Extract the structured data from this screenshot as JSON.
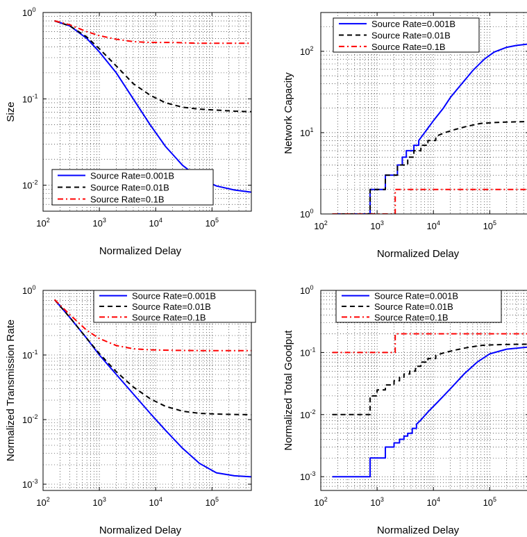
{
  "chart_data": [
    {
      "type": "line",
      "xlabel": "Normalized Delay",
      "ylabel": "Size",
      "xscale": "log",
      "yscale": "log",
      "xlim": [
        100,
        500000
      ],
      "ylim": [
        0.005,
        1
      ],
      "grid": true,
      "legend_position": "bottom-center",
      "xticks": [
        {
          "base": "10",
          "exp": "2",
          "value": 100
        },
        {
          "base": "10",
          "exp": "3",
          "value": 1000
        },
        {
          "base": "10",
          "exp": "4",
          "value": 10000
        },
        {
          "base": "10",
          "exp": "5",
          "value": 100000
        }
      ],
      "yticks": [
        {
          "base": "10",
          "exp": "-2",
          "value": 0.01
        },
        {
          "base": "10",
          "exp": "-1",
          "value": 0.1
        },
        {
          "base": "10",
          "exp": "0",
          "value": 1
        }
      ],
      "series": [
        {
          "name": "Source Rate=0.001B",
          "color": "#0000ff",
          "style": "solid",
          "x": [
            160,
            300,
            600,
            1000,
            2000,
            4000,
            8000,
            15000,
            30000,
            60000,
            120000,
            250000,
            500000
          ],
          "y": [
            0.8,
            0.7,
            0.5,
            0.35,
            0.2,
            0.1,
            0.05,
            0.028,
            0.017,
            0.012,
            0.0098,
            0.0088,
            0.0083
          ]
        },
        {
          "name": "Source Rate=0.01B",
          "color": "#000000",
          "style": "dashed",
          "x": [
            160,
            300,
            600,
            1000,
            2000,
            4000,
            8000,
            15000,
            30000,
            60000,
            120000,
            250000,
            500000
          ],
          "y": [
            0.8,
            0.7,
            0.52,
            0.38,
            0.24,
            0.15,
            0.11,
            0.09,
            0.08,
            0.076,
            0.074,
            0.072,
            0.071
          ]
        },
        {
          "name": "Source Rate=0.1B",
          "color": "#ff0000",
          "style": "dashdot",
          "x": [
            160,
            300,
            600,
            1000,
            2000,
            4000,
            8000,
            20000,
            60000,
            200000,
            500000
          ],
          "y": [
            0.8,
            0.72,
            0.6,
            0.54,
            0.49,
            0.46,
            0.45,
            0.45,
            0.44,
            0.44,
            0.44
          ]
        }
      ]
    },
    {
      "type": "line",
      "xlabel": "Normalized Delay",
      "ylabel": "Network Capacity",
      "xscale": "log",
      "yscale": "log",
      "xlim": [
        100,
        500000
      ],
      "ylim": [
        1,
        300
      ],
      "grid": true,
      "legend_position": "top-left",
      "xticks": [
        {
          "base": "10",
          "exp": "2",
          "value": 100
        },
        {
          "base": "10",
          "exp": "3",
          "value": 1000
        },
        {
          "base": "10",
          "exp": "4",
          "value": 10000
        },
        {
          "base": "10",
          "exp": "5",
          "value": 100000
        }
      ],
      "yticks": [
        {
          "base": "10",
          "exp": "0",
          "value": 1
        },
        {
          "base": "10",
          "exp": "1",
          "value": 10
        },
        {
          "base": "10",
          "exp": "2",
          "value": 100
        }
      ],
      "series": [
        {
          "name": "Source Rate=0.001B",
          "color": "#0000ff",
          "style": "solid",
          "x": [
            160,
            750,
            750,
            1400,
            1400,
            1800,
            1800,
            2300,
            2300,
            2800,
            2800,
            3300,
            3300,
            3800,
            3800,
            4500,
            4500,
            5500,
            5500,
            7000,
            10000,
            15000,
            20000,
            30000,
            50000,
            80000,
            120000,
            200000,
            300000,
            500000
          ],
          "y": [
            1,
            1,
            2,
            2,
            3,
            3,
            3,
            3,
            4,
            4,
            5,
            5,
            6,
            6,
            6,
            6,
            7,
            7,
            8,
            10,
            14,
            20,
            27,
            38,
            58,
            80,
            98,
            112,
            118,
            123
          ]
        },
        {
          "name": "Source Rate=0.01B",
          "color": "#000000",
          "style": "dashed",
          "x": [
            160,
            750,
            750,
            1400,
            1400,
            2300,
            2300,
            2800,
            2800,
            3500,
            3500,
            4500,
            4500,
            6000,
            6000,
            8000,
            8000,
            11000,
            11000,
            16000,
            25000,
            40000,
            70000,
            120000,
            200000,
            350000,
            500000
          ],
          "y": [
            1,
            1,
            2,
            2,
            3,
            3,
            4,
            4,
            4,
            4,
            5,
            5,
            6,
            6,
            7,
            7,
            8,
            8,
            9,
            10,
            11,
            12,
            13,
            13.3,
            13.5,
            13.6,
            13.7
          ]
        },
        {
          "name": "Source Rate=0.1B",
          "color": "#ff0000",
          "style": "dashdot",
          "x": [
            160,
            2100,
            2100,
            500000
          ],
          "y": [
            1,
            1,
            2,
            2
          ]
        }
      ]
    },
    {
      "type": "line",
      "xlabel": "Normalized Delay",
      "ylabel": "Normalized Transmission Rate",
      "xscale": "log",
      "yscale": "log",
      "xlim": [
        100,
        500000
      ],
      "ylim": [
        0.0008,
        1
      ],
      "grid": true,
      "legend_position": "top-right",
      "xticks": [
        {
          "base": "10",
          "exp": "2",
          "value": 100
        },
        {
          "base": "10",
          "exp": "3",
          "value": 1000
        },
        {
          "base": "10",
          "exp": "4",
          "value": 10000
        },
        {
          "base": "10",
          "exp": "5",
          "value": 100000
        }
      ],
      "yticks": [
        {
          "base": "10",
          "exp": "-3",
          "value": 0.001
        },
        {
          "base": "10",
          "exp": "-2",
          "value": 0.01
        },
        {
          "base": "10",
          "exp": "-1",
          "value": 0.1
        },
        {
          "base": "10",
          "exp": "0",
          "value": 1
        }
      ],
      "series": [
        {
          "name": "Source Rate=0.001B",
          "color": "#0000ff",
          "style": "solid",
          "x": [
            160,
            300,
            600,
            1000,
            2000,
            4000,
            8000,
            15000,
            30000,
            60000,
            120000,
            250000,
            500000
          ],
          "y": [
            0.72,
            0.38,
            0.18,
            0.1,
            0.05,
            0.025,
            0.0125,
            0.0068,
            0.0036,
            0.0021,
            0.0015,
            0.00135,
            0.0013
          ]
        },
        {
          "name": "Source Rate=0.01B",
          "color": "#000000",
          "style": "dashed",
          "x": [
            160,
            300,
            600,
            1000,
            2000,
            4000,
            8000,
            15000,
            30000,
            60000,
            120000,
            250000,
            500000
          ],
          "y": [
            0.72,
            0.38,
            0.18,
            0.105,
            0.055,
            0.032,
            0.021,
            0.016,
            0.0135,
            0.0125,
            0.0122,
            0.012,
            0.0119
          ]
        },
        {
          "name": "Source Rate=0.1B",
          "color": "#ff0000",
          "style": "dashdot",
          "x": [
            160,
            300,
            600,
            1000,
            2000,
            4000,
            8000,
            20000,
            60000,
            200000,
            500000
          ],
          "y": [
            0.72,
            0.42,
            0.24,
            0.18,
            0.14,
            0.125,
            0.12,
            0.118,
            0.117,
            0.117,
            0.117
          ]
        }
      ]
    },
    {
      "type": "line",
      "xlabel": "Normalized Delay",
      "ylabel": "Normalized Total Goodput",
      "xscale": "log",
      "yscale": "log",
      "xlim": [
        100,
        500000
      ],
      "ylim": [
        0.0006,
        1
      ],
      "grid": true,
      "legend_position": "top-right",
      "xticks": [
        {
          "base": "10",
          "exp": "2",
          "value": 100
        },
        {
          "base": "10",
          "exp": "3",
          "value": 1000
        },
        {
          "base": "10",
          "exp": "4",
          "value": 10000
        },
        {
          "base": "10",
          "exp": "5",
          "value": 100000
        }
      ],
      "yticks": [
        {
          "base": "10",
          "exp": "-3",
          "value": 0.001
        },
        {
          "base": "10",
          "exp": "-2",
          "value": 0.01
        },
        {
          "base": "10",
          "exp": "-1",
          "value": 0.1
        },
        {
          "base": "10",
          "exp": "0",
          "value": 1
        }
      ],
      "series": [
        {
          "name": "Source Rate=0.001B",
          "color": "#0000ff",
          "style": "solid",
          "x": [
            160,
            750,
            750,
            1400,
            1400,
            2000,
            2000,
            2500,
            2500,
            3000,
            3000,
            3500,
            3500,
            4200,
            4200,
            5000,
            5000,
            6000,
            8000,
            12000,
            20000,
            35000,
            60000,
            100000,
            200000,
            500000
          ],
          "y": [
            0.001,
            0.001,
            0.002,
            0.002,
            0.003,
            0.003,
            0.0035,
            0.0035,
            0.004,
            0.004,
            0.0045,
            0.0045,
            0.005,
            0.005,
            0.006,
            0.006,
            0.007,
            0.0082,
            0.011,
            0.016,
            0.026,
            0.045,
            0.07,
            0.095,
            0.113,
            0.123
          ]
        },
        {
          "name": "Source Rate=0.01B",
          "color": "#000000",
          "style": "dashed",
          "x": [
            160,
            750,
            750,
            1000,
            1000,
            1400,
            1400,
            2000,
            2000,
            2500,
            2500,
            3000,
            3000,
            3800,
            3800,
            4800,
            4800,
            6000,
            6000,
            8000,
            8000,
            11000,
            11000,
            16000,
            25000,
            40000,
            70000,
            120000,
            250000,
            500000
          ],
          "y": [
            0.01,
            0.01,
            0.02,
            0.02,
            0.025,
            0.025,
            0.03,
            0.03,
            0.035,
            0.035,
            0.04,
            0.04,
            0.045,
            0.045,
            0.05,
            0.05,
            0.06,
            0.06,
            0.07,
            0.07,
            0.08,
            0.08,
            0.09,
            0.1,
            0.11,
            0.12,
            0.13,
            0.133,
            0.135,
            0.136
          ]
        },
        {
          "name": "Source Rate=0.1B",
          "color": "#ff0000",
          "style": "dashdot",
          "x": [
            160,
            2100,
            2100,
            500000
          ],
          "y": [
            0.1,
            0.1,
            0.2,
            0.2
          ]
        }
      ]
    }
  ]
}
